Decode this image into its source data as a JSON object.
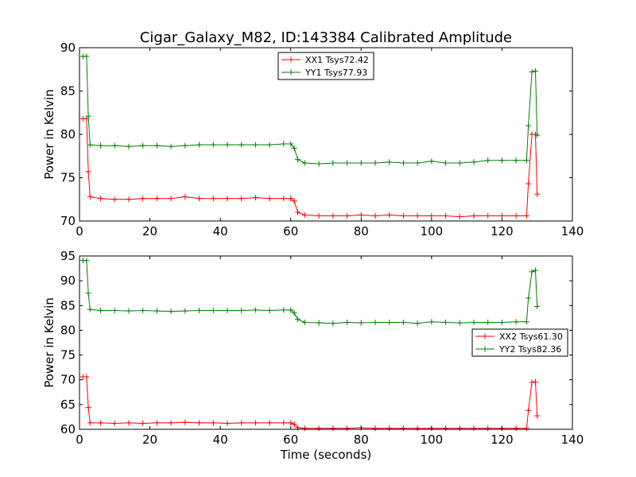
{
  "figure": {
    "title": "Cigar_Galaxy_M82, ID:143384 Calibrated Amplitude",
    "xlabel": "Time (seconds)"
  },
  "chart_data": [
    {
      "type": "line",
      "ylabel": "Power in Kelvin",
      "xlim": [
        0,
        140
      ],
      "ylim": [
        70,
        90
      ],
      "xticks": [
        "0",
        "20",
        "40",
        "60",
        "80",
        "100",
        "120",
        "140"
      ],
      "yticks": [
        "70",
        "75",
        "80",
        "85",
        "90"
      ],
      "legend_position": "top-center",
      "series": [
        {
          "name": "XX1 Tsys72.42",
          "color": "#ff0000",
          "marker": "+",
          "points": [
            [
              1.0,
              81.8
            ],
            [
              2.0,
              81.8
            ],
            [
              2.5,
              75.7
            ],
            [
              3.0,
              72.8
            ],
            [
              6,
              72.6
            ],
            [
              10,
              72.5
            ],
            [
              14,
              72.5
            ],
            [
              18,
              72.6
            ],
            [
              22,
              72.6
            ],
            [
              26,
              72.6
            ],
            [
              30,
              72.8
            ],
            [
              34,
              72.6
            ],
            [
              38,
              72.6
            ],
            [
              42,
              72.6
            ],
            [
              46,
              72.6
            ],
            [
              50,
              72.7
            ],
            [
              54,
              72.6
            ],
            [
              58,
              72.6
            ],
            [
              60,
              72.6
            ],
            [
              61,
              72.3
            ],
            [
              62,
              71.0
            ],
            [
              64,
              70.7
            ],
            [
              68,
              70.6
            ],
            [
              72,
              70.6
            ],
            [
              76,
              70.6
            ],
            [
              80,
              70.7
            ],
            [
              84,
              70.6
            ],
            [
              88,
              70.7
            ],
            [
              92,
              70.6
            ],
            [
              96,
              70.6
            ],
            [
              100,
              70.6
            ],
            [
              104,
              70.6
            ],
            [
              108,
              70.5
            ],
            [
              112,
              70.6
            ],
            [
              116,
              70.6
            ],
            [
              120,
              70.6
            ],
            [
              124,
              70.6
            ],
            [
              127,
              70.6
            ],
            [
              127.5,
              74.3
            ],
            [
              128.5,
              80.0
            ],
            [
              129.5,
              80.0
            ],
            [
              130,
              73.1
            ]
          ]
        },
        {
          "name": "YY1 Tsys77.93",
          "color": "#008000",
          "marker": "+",
          "points": [
            [
              1.0,
              89.0
            ],
            [
              2.0,
              89.0
            ],
            [
              2.5,
              82.1
            ],
            [
              3.0,
              78.8
            ],
            [
              6,
              78.7
            ],
            [
              10,
              78.7
            ],
            [
              14,
              78.6
            ],
            [
              18,
              78.7
            ],
            [
              22,
              78.7
            ],
            [
              26,
              78.6
            ],
            [
              30,
              78.7
            ],
            [
              34,
              78.8
            ],
            [
              38,
              78.8
            ],
            [
              42,
              78.8
            ],
            [
              46,
              78.8
            ],
            [
              50,
              78.8
            ],
            [
              54,
              78.8
            ],
            [
              58,
              78.9
            ],
            [
              60,
              78.9
            ],
            [
              61,
              78.4
            ],
            [
              62,
              77.1
            ],
            [
              64,
              76.7
            ],
            [
              68,
              76.6
            ],
            [
              72,
              76.7
            ],
            [
              76,
              76.7
            ],
            [
              80,
              76.7
            ],
            [
              84,
              76.7
            ],
            [
              88,
              76.8
            ],
            [
              92,
              76.7
            ],
            [
              96,
              76.7
            ],
            [
              100,
              76.9
            ],
            [
              104,
              76.7
            ],
            [
              108,
              76.7
            ],
            [
              112,
              76.8
            ],
            [
              116,
              77.0
            ],
            [
              120,
              77.0
            ],
            [
              124,
              77.0
            ],
            [
              127,
              77.0
            ],
            [
              127.5,
              81.0
            ],
            [
              128.5,
              87.2
            ],
            [
              129.5,
              87.3
            ],
            [
              130,
              79.9
            ]
          ]
        }
      ]
    },
    {
      "type": "line",
      "ylabel": "Power in Kelvin",
      "xlim": [
        0,
        140
      ],
      "ylim": [
        60,
        95
      ],
      "xticks": [
        "0",
        "20",
        "40",
        "60",
        "80",
        "100",
        "120",
        "140"
      ],
      "yticks": [
        "60",
        "65",
        "70",
        "75",
        "80",
        "85",
        "90",
        "95"
      ],
      "legend_position": "right",
      "series": [
        {
          "name": "XX2 Tsys61.30",
          "color": "#ff0000",
          "marker": "+",
          "points": [
            [
              1.0,
              70.6
            ],
            [
              2.0,
              70.6
            ],
            [
              2.5,
              64.4
            ],
            [
              3.0,
              61.3
            ],
            [
              6,
              61.3
            ],
            [
              10,
              61.2
            ],
            [
              14,
              61.3
            ],
            [
              18,
              61.2
            ],
            [
              22,
              61.3
            ],
            [
              26,
              61.3
            ],
            [
              30,
              61.4
            ],
            [
              34,
              61.3
            ],
            [
              38,
              61.3
            ],
            [
              42,
              61.2
            ],
            [
              46,
              61.3
            ],
            [
              50,
              61.3
            ],
            [
              54,
              61.3
            ],
            [
              58,
              61.3
            ],
            [
              60,
              61.3
            ],
            [
              61,
              61.0
            ],
            [
              62,
              60.3
            ],
            [
              64,
              60.2
            ],
            [
              68,
              60.2
            ],
            [
              72,
              60.2
            ],
            [
              76,
              60.2
            ],
            [
              80,
              60.3
            ],
            [
              84,
              60.2
            ],
            [
              88,
              60.2
            ],
            [
              92,
              60.2
            ],
            [
              96,
              60.2
            ],
            [
              100,
              60.2
            ],
            [
              104,
              60.2
            ],
            [
              108,
              60.2
            ],
            [
              112,
              60.2
            ],
            [
              116,
              60.2
            ],
            [
              120,
              60.2
            ],
            [
              124,
              60.2
            ],
            [
              127,
              60.2
            ],
            [
              127.5,
              63.8
            ],
            [
              128.5,
              69.5
            ],
            [
              129.5,
              69.6
            ],
            [
              130,
              62.7
            ]
          ]
        },
        {
          "name": "YY2 Tsys82.36",
          "color": "#008000",
          "marker": "+",
          "points": [
            [
              1.0,
              94.1
            ],
            [
              2.0,
              94.1
            ],
            [
              2.5,
              87.5
            ],
            [
              3.0,
              84.2
            ],
            [
              6,
              84.0
            ],
            [
              10,
              84.0
            ],
            [
              14,
              83.9
            ],
            [
              18,
              84.0
            ],
            [
              22,
              83.9
            ],
            [
              26,
              83.8
            ],
            [
              30,
              83.9
            ],
            [
              34,
              84.0
            ],
            [
              38,
              84.0
            ],
            [
              42,
              84.0
            ],
            [
              46,
              84.0
            ],
            [
              50,
              84.1
            ],
            [
              54,
              84.0
            ],
            [
              58,
              84.1
            ],
            [
              60,
              84.1
            ],
            [
              61,
              83.5
            ],
            [
              62,
              82.2
            ],
            [
              64,
              81.6
            ],
            [
              68,
              81.5
            ],
            [
              72,
              81.4
            ],
            [
              76,
              81.6
            ],
            [
              80,
              81.5
            ],
            [
              84,
              81.6
            ],
            [
              88,
              81.6
            ],
            [
              92,
              81.6
            ],
            [
              96,
              81.4
            ],
            [
              100,
              81.7
            ],
            [
              104,
              81.6
            ],
            [
              108,
              81.5
            ],
            [
              112,
              81.6
            ],
            [
              116,
              81.6
            ],
            [
              120,
              81.6
            ],
            [
              124,
              81.7
            ],
            [
              127,
              81.7
            ],
            [
              127.5,
              86.5
            ],
            [
              128.5,
              91.8
            ],
            [
              129.5,
              92.1
            ],
            [
              130,
              84.8
            ]
          ]
        }
      ]
    }
  ]
}
